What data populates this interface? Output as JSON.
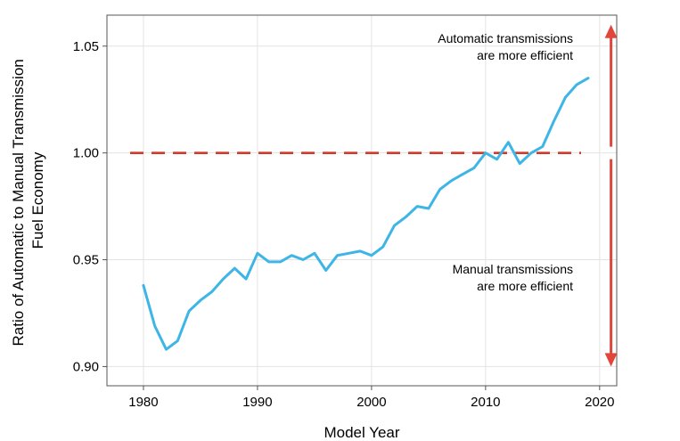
{
  "chart_data": {
    "type": "line",
    "xlabel": "Model Year",
    "ylabel": [
      "Ratio of Automatic to Manual Transmission",
      "Fuel Economy"
    ],
    "xlim": [
      1976.8,
      2021.5
    ],
    "ylim": [
      0.891,
      1.0645
    ],
    "xticks": [
      1980,
      1990,
      2000,
      2010,
      2020
    ],
    "yticks": [
      0.9,
      0.95,
      1.0,
      1.05
    ],
    "ytick_labels": [
      "0.90",
      "0.95",
      "1.00",
      "1.05"
    ],
    "grid": true,
    "reference_line": {
      "y": 1.0,
      "style": "dashed",
      "color": "#d03a2a"
    },
    "indicator_arrow": {
      "color": "#e0463a",
      "from": 0.9,
      "to": 1.06,
      "x": 2021
    },
    "annotations": [
      {
        "lines": [
          "Automatic transmissions",
          "are more efficient"
        ]
      },
      {
        "lines": [
          "Manual transmissions",
          "are more efficient"
        ]
      }
    ],
    "series": [
      {
        "color": "#3db5e6",
        "x": [
          1980,
          1981,
          1982,
          1983,
          1984,
          1985,
          1986,
          1987,
          1988,
          1989,
          1990,
          1991,
          1992,
          1993,
          1994,
          1995,
          1996,
          1997,
          1998,
          1999,
          2000,
          2001,
          2002,
          2003,
          2004,
          2005,
          2006,
          2007,
          2008,
          2009,
          2010,
          2011,
          2012,
          2013,
          2014,
          2015,
          2016,
          2017,
          2018,
          2019
        ],
        "y": [
          0.938,
          0.919,
          0.908,
          0.912,
          0.926,
          0.931,
          0.935,
          0.941,
          0.946,
          0.941,
          0.953,
          0.949,
          0.949,
          0.952,
          0.95,
          0.953,
          0.945,
          0.952,
          0.953,
          0.954,
          0.952,
          0.956,
          0.966,
          0.97,
          0.975,
          0.974,
          0.983,
          0.987,
          0.99,
          0.993,
          1.0,
          0.997,
          1.005,
          0.995,
          1.0,
          1.003,
          1.015,
          1.026,
          1.032,
          1.035
        ]
      }
    ]
  }
}
